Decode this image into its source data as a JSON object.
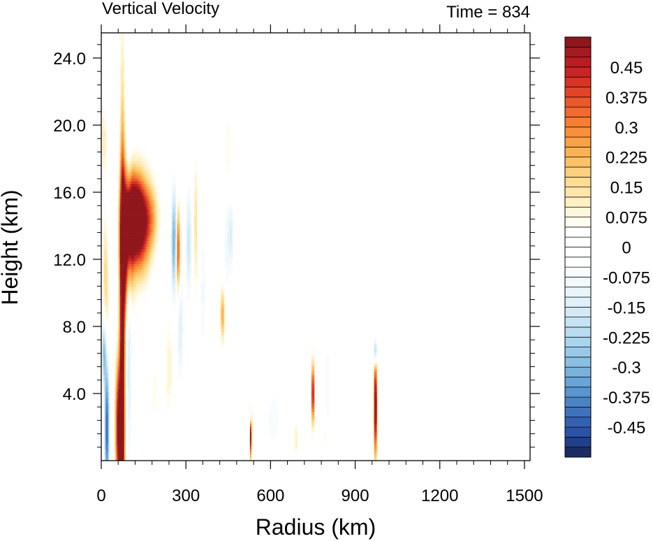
{
  "chart_data": {
    "type": "heatmap",
    "title": "Vertical Velocity",
    "time_label": "Time = 834",
    "xlabel": "Radius (km)",
    "ylabel": "Height (km)",
    "xlim": [
      0,
      1520
    ],
    "ylim": [
      0,
      25.5
    ],
    "xticks": [
      0,
      300,
      600,
      900,
      1200,
      1500
    ],
    "xtick_labels": [
      "0",
      "300",
      "600",
      "900",
      "1200",
      "1500"
    ],
    "yticks": [
      4,
      8,
      12,
      16,
      20,
      24
    ],
    "ytick_labels": [
      "4.0",
      "8.0",
      "12.0",
      "16.0",
      "20.0",
      "24.0"
    ],
    "colorbar": {
      "levels": [
        -0.525,
        -0.5,
        -0.475,
        -0.45,
        -0.425,
        -0.4,
        -0.375,
        -0.35,
        -0.325,
        -0.3,
        -0.275,
        -0.25,
        -0.225,
        -0.2,
        -0.175,
        -0.15,
        -0.125,
        -0.1,
        -0.075,
        -0.05,
        -0.025,
        0,
        0.025,
        0.05,
        0.075,
        0.1,
        0.125,
        0.15,
        0.175,
        0.2,
        0.225,
        0.25,
        0.275,
        0.3,
        0.325,
        0.35,
        0.375,
        0.4,
        0.425,
        0.45,
        0.475,
        0.5,
        0.525
      ],
      "labels": [
        "-0.45",
        "-0.375",
        "-0.3",
        "-0.225",
        "-0.15",
        "-0.075",
        "0",
        "0.075",
        "0.15",
        "0.225",
        "0.3",
        "0.375",
        "0.45"
      ],
      "label_values": [
        -0.45,
        -0.375,
        -0.3,
        -0.225,
        -0.15,
        -0.075,
        0,
        0.075,
        0.15,
        0.225,
        0.3,
        0.375,
        0.45
      ],
      "colors": [
        "#1b2c62",
        "#213f8a",
        "#2a52a6",
        "#3462b2",
        "#3e72bc",
        "#4a84c5",
        "#5995ce",
        "#68a4d5",
        "#78b2dc",
        "#88bfe2",
        "#98cae8",
        "#a8d4ec",
        "#b8dcf0",
        "#c6e3f3",
        "#d3eaf6",
        "#dff0f9",
        "#e9f5fb",
        "#f1f9fd",
        "#f8fcfe",
        "#ffffff",
        "#ffffff",
        "#ffffff",
        "#ffffff",
        "#fffcf0",
        "#fff7dc",
        "#fff0c4",
        "#ffe6a8",
        "#fedc92",
        "#fdd07c",
        "#fcc267",
        "#fbb254",
        "#faa245",
        "#f8903a",
        "#f57e33",
        "#f06b2e",
        "#ea582b",
        "#e24528",
        "#d83426",
        "#ca2524",
        "#b91c22",
        "#a51b20",
        "#8f171c"
      ]
    },
    "features": [
      {
        "x": 75,
        "y": 6,
        "w": 9,
        "h": 14,
        "v": 0.6
      },
      {
        "x": 90,
        "y": 13,
        "w": 22,
        "h": 4,
        "v": 0.55
      },
      {
        "x": 115,
        "y": 14.5,
        "w": 30,
        "h": 2.2,
        "v": 0.6
      },
      {
        "x": 140,
        "y": 14,
        "w": 35,
        "h": 3,
        "v": 0.4
      },
      {
        "x": 175,
        "y": 14.5,
        "w": 30,
        "h": 2,
        "v": 0.2
      },
      {
        "x": 98,
        "y": 10,
        "w": 10,
        "h": 9,
        "v": -0.2
      },
      {
        "x": 62,
        "y": 2,
        "w": 12,
        "h": 4,
        "v": 0.55
      },
      {
        "x": 20,
        "y": 2,
        "w": 8,
        "h": 4,
        "v": -0.45
      },
      {
        "x": 10,
        "y": 6.5,
        "w": 7,
        "h": 2,
        "v": -0.3
      },
      {
        "x": 18,
        "y": 11,
        "w": 12,
        "h": 4,
        "v": 0.2
      },
      {
        "x": 10,
        "y": 19,
        "w": 12,
        "h": 2,
        "v": 0.12
      },
      {
        "x": 25,
        "y": 13,
        "w": 8,
        "h": 3,
        "v": -0.1
      },
      {
        "x": 258,
        "y": 13,
        "w": 9,
        "h": 3,
        "v": -0.35
      },
      {
        "x": 272,
        "y": 12.5,
        "w": 8,
        "h": 2.5,
        "v": 0.4
      },
      {
        "x": 280,
        "y": 8,
        "w": 10,
        "h": 3,
        "v": -0.15
      },
      {
        "x": 240,
        "y": 5.5,
        "w": 16,
        "h": 3,
        "v": 0.1
      },
      {
        "x": 310,
        "y": 13,
        "w": 10,
        "h": 3,
        "v": -0.18
      },
      {
        "x": 335,
        "y": 14,
        "w": 8,
        "h": 4,
        "v": 0.15
      },
      {
        "x": 360,
        "y": 10,
        "w": 12,
        "h": 4,
        "v": -0.08
      },
      {
        "x": 430,
        "y": 8.7,
        "w": 9,
        "h": 1.6,
        "v": 0.25
      },
      {
        "x": 445,
        "y": 13,
        "w": 10,
        "h": 3,
        "v": -0.1
      },
      {
        "x": 450,
        "y": 18.5,
        "w": 18,
        "h": 3,
        "v": 0.07
      },
      {
        "x": 530,
        "y": 1.6,
        "w": 4,
        "h": 1.5,
        "v": 0.55
      },
      {
        "x": 528,
        "y": 2.8,
        "w": 3,
        "h": 0.8,
        "v": -0.4
      },
      {
        "x": 750,
        "y": 4,
        "w": 4,
        "h": 1.8,
        "v": 0.6
      },
      {
        "x": 972,
        "y": 3.2,
        "w": 6,
        "h": 3,
        "v": 0.6
      },
      {
        "x": 972,
        "y": 6.5,
        "w": 5,
        "h": 0.8,
        "v": -0.4
      },
      {
        "x": 800,
        "y": 4,
        "w": 12,
        "h": 6,
        "v": -0.06
      },
      {
        "x": 610,
        "y": 2.5,
        "w": 30,
        "h": 2,
        "v": -0.07
      },
      {
        "x": 690,
        "y": 1.3,
        "w": 8,
        "h": 1,
        "v": 0.12
      },
      {
        "x": 795,
        "y": 1.4,
        "w": 8,
        "h": 0.9,
        "v": 0.1
      },
      {
        "x": 460,
        "y": 13.5,
        "w": 8,
        "h": 2,
        "v": -0.15
      },
      {
        "x": 190,
        "y": 4,
        "w": 14,
        "h": 2,
        "v": 0.07
      },
      {
        "x": 1050,
        "y": 10.5,
        "w": 12,
        "h": 1.5,
        "v": -0.05
      }
    ]
  }
}
